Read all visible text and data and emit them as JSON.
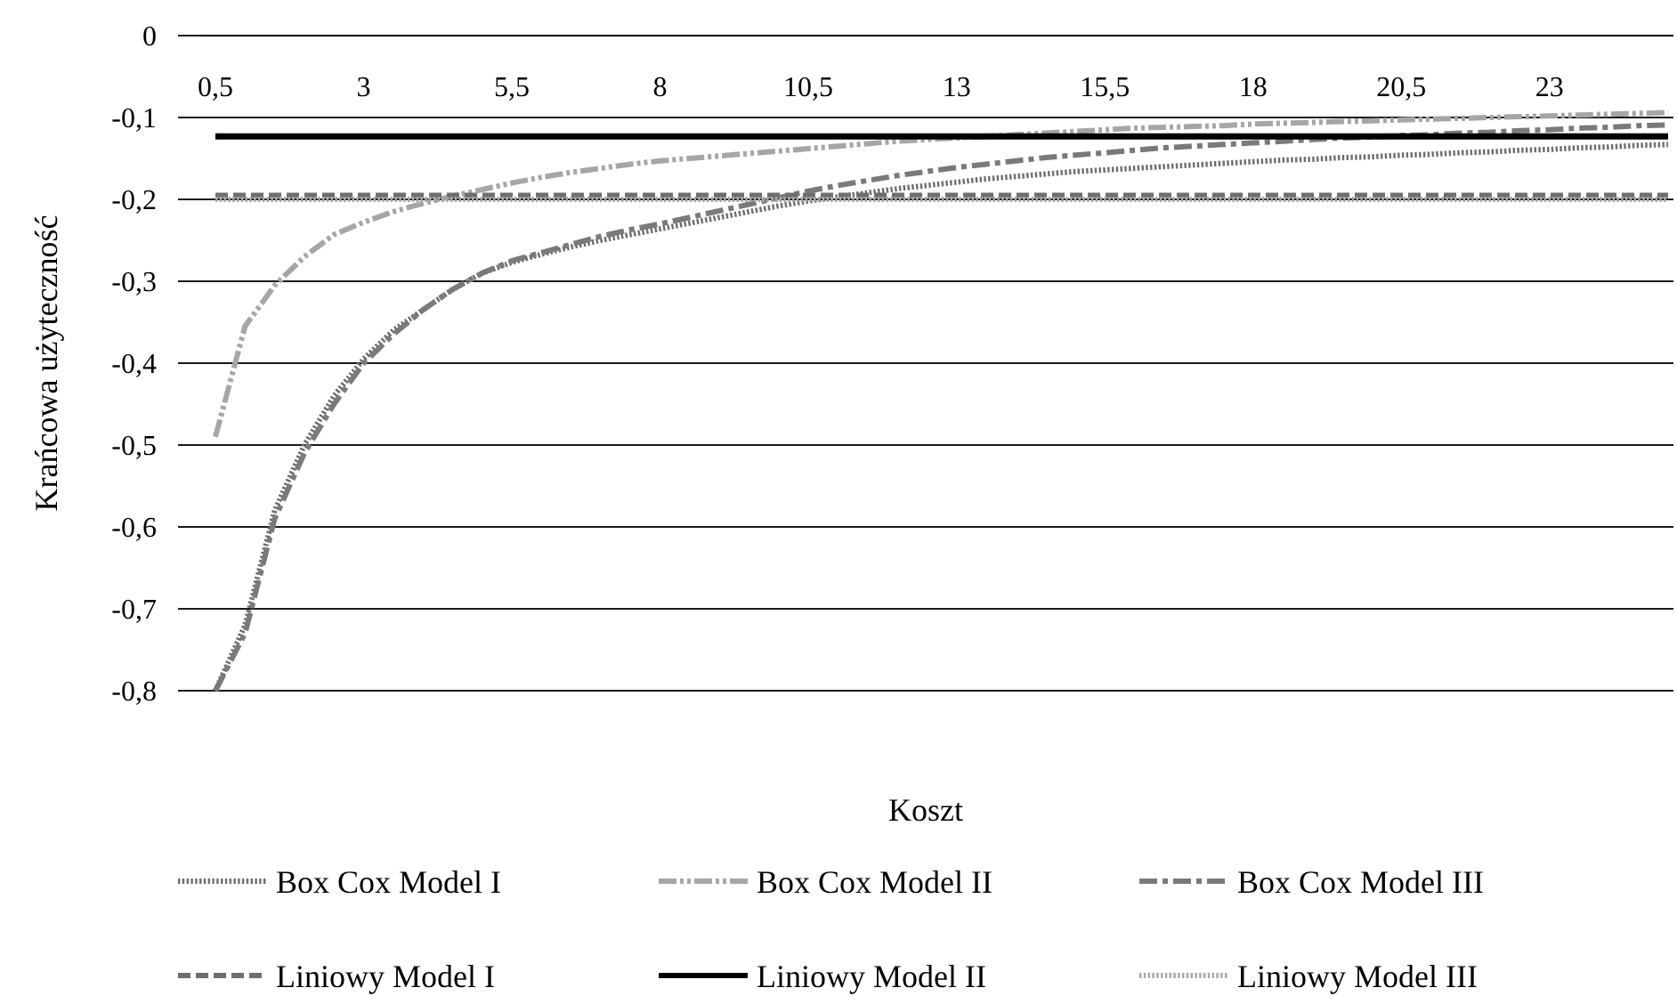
{
  "chart_data": {
    "type": "line",
    "xlabel": "Koszt",
    "ylabel": "Krańcowa użyteczność",
    "categories": [
      "0,5",
      null,
      null,
      null,
      null,
      "3",
      null,
      null,
      null,
      null,
      "5,5",
      null,
      null,
      null,
      null,
      "8",
      null,
      null,
      null,
      null,
      "10,5",
      null,
      null,
      null,
      null,
      "13",
      null,
      null,
      null,
      null,
      "15,5",
      null,
      null,
      null,
      null,
      "18",
      null,
      null,
      null,
      null,
      "20,5",
      null,
      null,
      null,
      null,
      "23",
      null,
      null,
      null,
      null
    ],
    "ylim": [
      -0.8,
      0
    ],
    "yticks": [
      {
        "value": 0,
        "label": "0"
      },
      {
        "value": -0.1,
        "label": "-0,1"
      },
      {
        "value": -0.2,
        "label": "-0,2"
      },
      {
        "value": -0.3,
        "label": "-0,3"
      },
      {
        "value": -0.4,
        "label": "-0,4"
      },
      {
        "value": -0.5,
        "label": "-0,5"
      },
      {
        "value": -0.6,
        "label": "-0,6"
      },
      {
        "value": -0.7,
        "label": "-0,7"
      },
      {
        "value": -0.8,
        "label": "-0,8"
      }
    ],
    "grid": "y",
    "legend": "bottom",
    "series": [
      {
        "name": "Box Cox Model I",
        "color": "#6e6e6e",
        "line_style": "dotted",
        "values": [
          -0.8,
          -0.72,
          -0.58,
          -0.5,
          -0.44,
          -0.395,
          -0.36,
          -0.335,
          -0.31,
          -0.29,
          -0.277,
          -0.267,
          -0.258,
          -0.25,
          -0.243,
          -0.236,
          -0.229,
          -0.222,
          -0.215,
          -0.208,
          -0.202,
          -0.197,
          -0.192,
          -0.187,
          -0.183,
          -0.179,
          -0.175,
          -0.172,
          -0.169,
          -0.166,
          -0.164,
          -0.162,
          -0.16,
          -0.158,
          -0.156,
          -0.154,
          -0.152,
          -0.151,
          -0.149,
          -0.148,
          -0.146,
          -0.145,
          -0.143,
          -0.142,
          -0.14,
          -0.139,
          -0.137,
          -0.136,
          -0.134,
          -0.133
        ]
      },
      {
        "name": "Box Cox Model II",
        "color": "#a6a6a6",
        "line_style": "dashdotdot",
        "values": [
          -0.49,
          -0.355,
          -0.305,
          -0.27,
          -0.243,
          -0.228,
          -0.215,
          -0.205,
          -0.196,
          -0.188,
          -0.18,
          -0.173,
          -0.167,
          -0.162,
          -0.157,
          -0.153,
          -0.15,
          -0.147,
          -0.144,
          -0.141,
          -0.138,
          -0.135,
          -0.132,
          -0.129,
          -0.127,
          -0.125,
          -0.123,
          -0.121,
          -0.119,
          -0.117,
          -0.115,
          -0.113,
          -0.112,
          -0.111,
          -0.11,
          -0.108,
          -0.107,
          -0.106,
          -0.105,
          -0.104,
          -0.103,
          -0.102,
          -0.101,
          -0.1,
          -0.099,
          -0.098,
          -0.097,
          -0.096,
          -0.095,
          -0.094
        ]
      },
      {
        "name": "Box Cox Model III",
        "color": "#7a7a7a",
        "line_style": "dashdot",
        "values": [
          -0.8,
          -0.73,
          -0.59,
          -0.51,
          -0.45,
          -0.4,
          -0.365,
          -0.335,
          -0.31,
          -0.29,
          -0.275,
          -0.265,
          -0.255,
          -0.245,
          -0.237,
          -0.23,
          -0.222,
          -0.214,
          -0.206,
          -0.198,
          -0.19,
          -0.183,
          -0.177,
          -0.171,
          -0.166,
          -0.161,
          -0.157,
          -0.153,
          -0.149,
          -0.146,
          -0.143,
          -0.14,
          -0.137,
          -0.135,
          -0.133,
          -0.131,
          -0.129,
          -0.127,
          -0.125,
          -0.124,
          -0.122,
          -0.121,
          -0.119,
          -0.118,
          -0.116,
          -0.115,
          -0.113,
          -0.112,
          -0.11,
          -0.109
        ]
      },
      {
        "name": "Liniowy Model I",
        "color": "#6e6e6e",
        "line_style": "dashed",
        "values": [
          -0.195,
          -0.195,
          -0.195,
          -0.195,
          -0.195,
          -0.195,
          -0.195,
          -0.195,
          -0.195,
          -0.195,
          -0.195,
          -0.195,
          -0.195,
          -0.195,
          -0.195,
          -0.195,
          -0.195,
          -0.195,
          -0.195,
          -0.195,
          -0.195,
          -0.195,
          -0.195,
          -0.195,
          -0.195,
          -0.195,
          -0.195,
          -0.195,
          -0.195,
          -0.195,
          -0.195,
          -0.195,
          -0.195,
          -0.195,
          -0.195,
          -0.195,
          -0.195,
          -0.195,
          -0.195,
          -0.195,
          -0.195,
          -0.195,
          -0.195,
          -0.195,
          -0.195,
          -0.195,
          -0.195,
          -0.195,
          -0.195,
          -0.195
        ]
      },
      {
        "name": "Liniowy Model II",
        "color": "#000000",
        "line_style": "solid",
        "values": [
          -0.123,
          -0.123,
          -0.123,
          -0.123,
          -0.123,
          -0.123,
          -0.123,
          -0.123,
          -0.123,
          -0.123,
          -0.123,
          -0.123,
          -0.123,
          -0.123,
          -0.123,
          -0.123,
          -0.123,
          -0.123,
          -0.123,
          -0.123,
          -0.123,
          -0.123,
          -0.123,
          -0.123,
          -0.123,
          -0.123,
          -0.123,
          -0.123,
          -0.123,
          -0.123,
          -0.123,
          -0.123,
          -0.123,
          -0.123,
          -0.123,
          -0.123,
          -0.123,
          -0.123,
          -0.123,
          -0.123,
          -0.123,
          -0.123,
          -0.123,
          -0.123,
          -0.123,
          -0.123,
          -0.123,
          -0.123,
          -0.123,
          -0.123
        ]
      },
      {
        "name": "Liniowy Model III",
        "color": "#a6a6a6",
        "line_style": "dotted",
        "values": [
          -0.2,
          -0.2,
          -0.2,
          -0.2,
          -0.2,
          -0.2,
          -0.2,
          -0.2,
          -0.2,
          -0.2,
          -0.2,
          -0.2,
          -0.2,
          -0.2,
          -0.2,
          -0.2,
          -0.2,
          -0.2,
          -0.2,
          -0.2,
          -0.2,
          -0.2,
          -0.2,
          -0.2,
          -0.2,
          -0.2,
          -0.2,
          -0.2,
          -0.2,
          -0.2,
          -0.2,
          -0.2,
          -0.2,
          -0.2,
          -0.2,
          -0.2,
          -0.2,
          -0.2,
          -0.2,
          -0.2,
          -0.2,
          -0.2,
          -0.2,
          -0.2,
          -0.2,
          -0.2,
          -0.2,
          -0.2,
          -0.2,
          -0.2
        ]
      }
    ]
  }
}
